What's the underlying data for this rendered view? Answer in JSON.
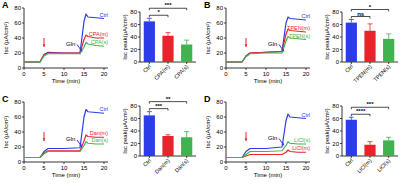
{
  "chart_data": [
    {
      "type": "line",
      "panel_label": "A",
      "x_label": "Time (min)",
      "y_label": "Isc (µA/cm²)",
      "x": [
        0,
        4,
        5,
        6,
        10,
        14,
        15,
        15.5,
        16,
        18,
        20
      ],
      "series": [
        {
          "name": "Ctrl",
          "color": "#2a3de8",
          "values": [
            8,
            8,
            18,
            21,
            20,
            20,
            62,
            72,
            68,
            67,
            66
          ]
        },
        {
          "name": "CPA(m)",
          "color": "#e8232b",
          "values": [
            8,
            8,
            18,
            20,
            20,
            20,
            38,
            44,
            42,
            40,
            40
          ]
        },
        {
          "name": "CPA(s)",
          "color": "#3fb34f",
          "values": [
            8,
            8,
            16,
            19,
            19,
            19,
            28,
            34,
            32,
            30,
            29
          ]
        }
      ],
      "xlim": [
        0,
        21
      ],
      "xticks": [
        0,
        5,
        10,
        15,
        20
      ],
      "ylim": [
        0,
        80
      ],
      "yticks": [
        0,
        20,
        40,
        60,
        80
      ],
      "drug_arrow_x": 5,
      "annotations": [
        {
          "text": "Gln",
          "x": 10.5,
          "y": 30
        }
      ]
    },
    {
      "type": "bar",
      "y_label": "Isc peak(µA/cm²)",
      "categories": [
        "Ctrl",
        "CPA(m)",
        "CPA(s)"
      ],
      "values": [
        65,
        42,
        28
      ],
      "errors": [
        5,
        5,
        7
      ],
      "colors": [
        "#2a3de8",
        "#e8232b",
        "#3fb34f"
      ],
      "ylim": [
        0,
        80
      ],
      "yticks": [
        0,
        20,
        40,
        60,
        80
      ],
      "significance": [
        {
          "pair": [
            0,
            1
          ],
          "label": "*"
        },
        {
          "pair": [
            0,
            2
          ],
          "label": "***"
        }
      ]
    },
    {
      "type": "line",
      "panel_label": "B",
      "x_label": "Time (min)",
      "y_label": "Isc (µA/cm²)",
      "x": [
        0,
        4,
        5,
        6,
        10,
        14,
        15,
        15.5,
        16,
        18,
        20
      ],
      "series": [
        {
          "name": "Ctrl",
          "color": "#2a3de8",
          "values": [
            8,
            8,
            16,
            20,
            21,
            22,
            60,
            68,
            66,
            65,
            64
          ]
        },
        {
          "name": "TPEN(m)",
          "color": "#e8232b",
          "values": [
            8,
            8,
            16,
            20,
            21,
            22,
            45,
            52,
            50,
            49,
            48
          ]
        },
        {
          "name": "TPEN(s)",
          "color": "#3fb34f",
          "values": [
            8,
            8,
            15,
            19,
            20,
            20,
            36,
            42,
            40,
            39,
            38
          ]
        }
      ],
      "xlim": [
        0,
        21
      ],
      "xticks": [
        0,
        5,
        10,
        15,
        20
      ],
      "ylim": [
        0,
        80
      ],
      "yticks": [
        0,
        20,
        40,
        60,
        80
      ],
      "drug_arrow_x": 5,
      "annotations": [
        {
          "text": "Gln",
          "x": 10.5,
          "y": 30
        }
      ]
    },
    {
      "type": "bar",
      "y_label": "Isc peak(µA/cm²)",
      "categories": [
        "Ctrl",
        "TPEN(m)",
        "TPEN(s)"
      ],
      "values": [
        63,
        50,
        37
      ],
      "errors": [
        5,
        11,
        8
      ],
      "colors": [
        "#2a3de8",
        "#e8232b",
        "#3fb34f"
      ],
      "ylim": [
        0,
        80
      ],
      "yticks": [
        0,
        20,
        40,
        60,
        80
      ],
      "significance": [
        {
          "pair": [
            0,
            1
          ],
          "label": "ns"
        },
        {
          "pair": [
            0,
            2
          ],
          "label": "*"
        }
      ]
    },
    {
      "type": "line",
      "panel_label": "C",
      "x_label": "Time (min)",
      "y_label": "Isc (µA/cm²)",
      "x": [
        0,
        4,
        5,
        6,
        10,
        14,
        15,
        15.5,
        16,
        18,
        20
      ],
      "series": [
        {
          "name": "Ctrl",
          "color": "#2a3de8",
          "values": [
            6,
            6,
            14,
            18,
            18,
            19,
            60,
            70,
            67,
            66,
            65
          ]
        },
        {
          "name": "Dan(m)",
          "color": "#e8232b",
          "values": [
            6,
            6,
            12,
            15,
            15,
            15,
            28,
            36,
            34,
            33,
            33
          ]
        },
        {
          "name": "Dan(s)",
          "color": "#3fb34f",
          "values": [
            6,
            6,
            11,
            14,
            14,
            14,
            22,
            27,
            25,
            24,
            24
          ]
        }
      ],
      "xlim": [
        0,
        21
      ],
      "xticks": [
        0,
        5,
        10,
        15,
        20
      ],
      "ylim": [
        0,
        80
      ],
      "yticks": [
        0,
        20,
        40,
        60,
        80
      ],
      "drug_arrow_x": 5,
      "annotations": [
        {
          "text": "Gln",
          "x": 10.5,
          "y": 28
        }
      ]
    },
    {
      "type": "bar",
      "y_label": "Isc peak(µA/cm²)",
      "categories": [
        "Ctrl",
        "Dan(m)",
        "Dan(s)"
      ],
      "values": [
        65,
        32,
        30
      ],
      "errors": [
        6,
        2,
        9
      ],
      "colors": [
        "#2a3de8",
        "#e8232b",
        "#3fb34f"
      ],
      "ylim": [
        0,
        80
      ],
      "yticks": [
        0,
        20,
        40,
        60,
        80
      ],
      "significance": [
        {
          "pair": [
            0,
            1
          ],
          "label": "***"
        },
        {
          "pair": [
            0,
            2
          ],
          "label": "**"
        }
      ]
    },
    {
      "type": "line",
      "panel_label": "D",
      "x_label": "Time (min)",
      "y_label": "Isc (µA/cm²)",
      "x": [
        0,
        4,
        5,
        6,
        10,
        14,
        15,
        15.5,
        16,
        18,
        20
      ],
      "series": [
        {
          "name": "Ctrl",
          "color": "#2a3de8",
          "values": [
            6,
            6,
            14,
            18,
            18,
            20,
            55,
            64,
            60,
            59,
            58
          ]
        },
        {
          "name": "LiCl(m)",
          "color": "#e8232b",
          "values": [
            6,
            6,
            8,
            10,
            10,
            10,
            13,
            16,
            14,
            13,
            13
          ]
        },
        {
          "name": "LiCl(s)",
          "color": "#3fb34f",
          "values": [
            6,
            6,
            10,
            14,
            14,
            15,
            22,
            27,
            25,
            24,
            24
          ]
        }
      ],
      "xlim": [
        0,
        21
      ],
      "xticks": [
        0,
        5,
        10,
        15,
        20
      ],
      "ylim": [
        0,
        80
      ],
      "yticks": [
        0,
        20,
        40,
        60,
        80
      ],
      "drug_arrow_x": 5,
      "annotations": [
        {
          "text": "Gln",
          "x": 10.5,
          "y": 30
        }
      ]
    },
    {
      "type": "bar",
      "y_label": "Isc peak(µA/cm²)",
      "categories": [
        "Ctrl",
        "LiCl(m)",
        "LiCl(s)"
      ],
      "values": [
        58,
        18,
        25
      ],
      "errors": [
        4,
        5,
        5
      ],
      "colors": [
        "#2a3de8",
        "#e8232b",
        "#3fb34f"
      ],
      "ylim": [
        0,
        80
      ],
      "yticks": [
        0,
        20,
        40,
        60,
        80
      ],
      "significance": [
        {
          "pair": [
            0,
            1
          ],
          "label": "****"
        },
        {
          "pair": [
            0,
            2
          ],
          "label": "***"
        }
      ]
    }
  ]
}
